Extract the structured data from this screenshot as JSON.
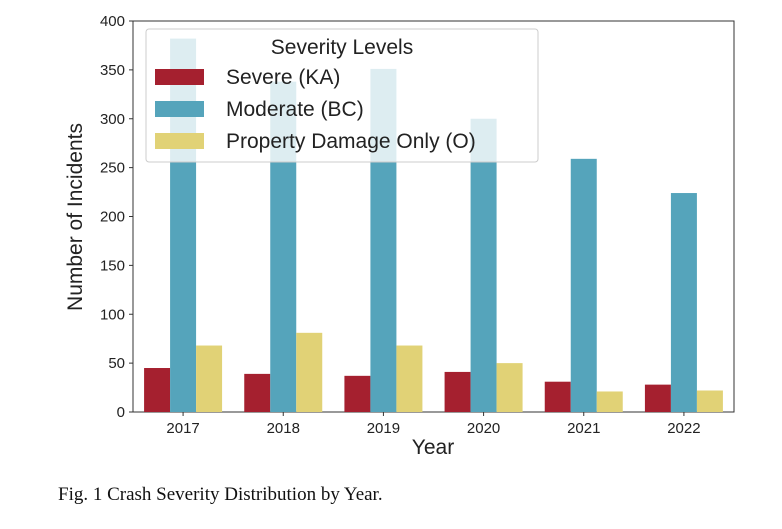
{
  "caption": "Fig. 1 Crash Severity Distribution by Year.",
  "chart_data": {
    "type": "bar",
    "xlabel": "Year",
    "ylabel": "Number of Incidents",
    "ylim": [
      0,
      400
    ],
    "yticks": [
      0,
      50,
      100,
      150,
      200,
      250,
      300,
      350,
      400
    ],
    "categories": [
      "2017",
      "2018",
      "2019",
      "2020",
      "2021",
      "2022"
    ],
    "grid": false,
    "legend": {
      "title": "Severity Levels",
      "placement": "top-left"
    },
    "series": [
      {
        "name": "Severe (KA)",
        "color": "#a5202f",
        "values": [
          45,
          39,
          37,
          41,
          31,
          28
        ]
      },
      {
        "name": "Moderate (BC)",
        "color": "#55a4bb",
        "values": [
          382,
          338,
          351,
          300,
          259,
          224
        ]
      },
      {
        "name": "Property Damage Only (O)",
        "color": "#e1d276",
        "values": [
          68,
          81,
          68,
          50,
          21,
          22
        ]
      }
    ]
  }
}
